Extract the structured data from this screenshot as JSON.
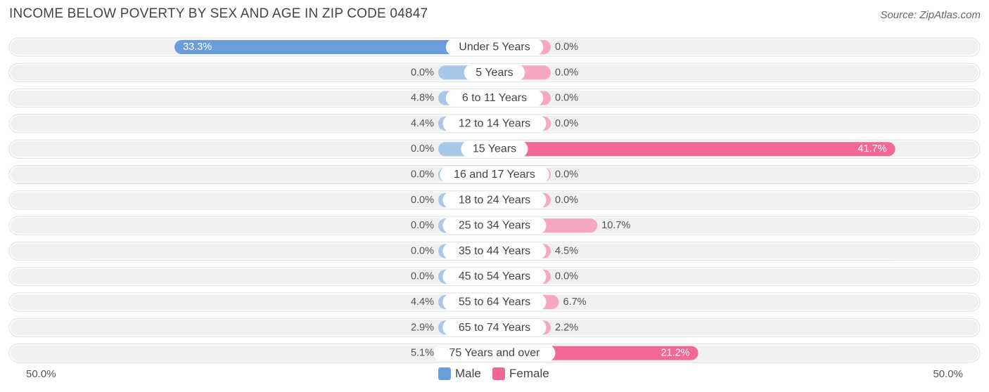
{
  "title": "INCOME BELOW POVERTY BY SEX AND AGE IN ZIP CODE 04847",
  "source": "Source: ZipAtlas.com",
  "colors": {
    "male": "#a8c8ea",
    "male_strong": "#6a9edb",
    "female": "#f6a8c1",
    "female_strong": "#f06893",
    "track": "#f0f0f0"
  },
  "legend": {
    "male_label": "Male",
    "female_label": "Female"
  },
  "axis": {
    "left_label": "50.0%",
    "right_label": "50.0%"
  },
  "chart_data": {
    "type": "bar",
    "orientation": "horizontal-diverging",
    "title": "INCOME BELOW POVERTY BY SEX AND AGE IN ZIP CODE 04847",
    "xlim": [
      -50,
      50
    ],
    "categories": [
      "Under 5 Years",
      "5 Years",
      "6 to 11 Years",
      "12 to 14 Years",
      "15 Years",
      "16 and 17 Years",
      "18 to 24 Years",
      "25 to 34 Years",
      "35 to 44 Years",
      "45 to 54 Years",
      "55 to 64 Years",
      "65 to 74 Years",
      "75 Years and over"
    ],
    "series": [
      {
        "name": "Male",
        "values": [
          33.3,
          0.0,
          4.8,
          4.4,
          0.0,
          0.0,
          0.0,
          0.0,
          0.0,
          0.0,
          4.4,
          2.9,
          5.1
        ],
        "labels": [
          "33.3%",
          "0.0%",
          "4.8%",
          "4.4%",
          "0.0%",
          "0.0%",
          "0.0%",
          "0.0%",
          "0.0%",
          "0.0%",
          "4.4%",
          "2.9%",
          "5.1%"
        ]
      },
      {
        "name": "Female",
        "values": [
          0.0,
          0.0,
          0.0,
          0.0,
          41.7,
          0.0,
          0.0,
          10.7,
          4.5,
          0.0,
          6.7,
          2.2,
          21.2
        ],
        "labels": [
          "0.0%",
          "0.0%",
          "0.0%",
          "0.0%",
          "41.7%",
          "0.0%",
          "0.0%",
          "10.7%",
          "4.5%",
          "0.0%",
          "6.7%",
          "2.2%",
          "21.2%"
        ]
      }
    ]
  }
}
